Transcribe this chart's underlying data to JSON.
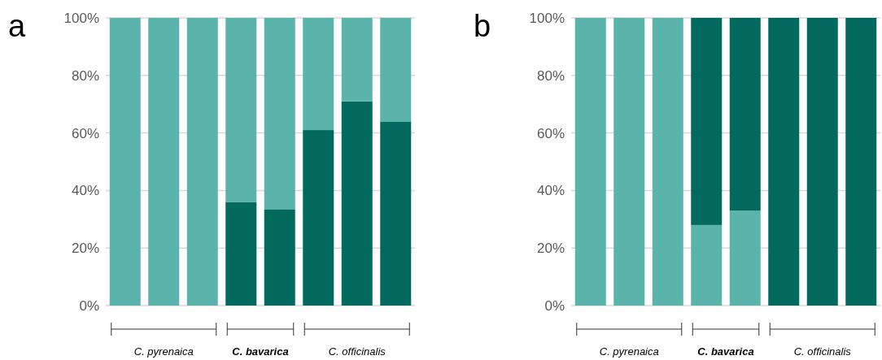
{
  "chart_data": [
    {
      "type": "bar",
      "title": "a",
      "stacked": true,
      "categories": [
        null,
        null,
        null,
        null,
        null,
        null,
        null,
        null
      ],
      "series": [
        {
          "color": "#02695e",
          "values": [
            0,
            0,
            0,
            36,
            33.5,
            61,
            71,
            64
          ]
        },
        {
          "color": "#5ab4ab",
          "values": [
            100,
            100,
            100,
            64,
            66.5,
            39,
            29,
            36
          ]
        }
      ],
      "ylim": [
        0,
        100
      ],
      "yticks": [
        {
          "value": 0,
          "label": "0%"
        },
        {
          "value": 20,
          "label": "20%"
        },
        {
          "value": 40,
          "label": "40%"
        },
        {
          "value": 60,
          "label": "60%"
        },
        {
          "value": 80,
          "label": "80%"
        },
        {
          "value": 100,
          "label": "100%"
        }
      ],
      "grid": "y",
      "annotations": [
        "C. pyrenaica",
        "C. bavarica",
        "C. officinalis"
      ]
    },
    {
      "type": "bar",
      "title": "b",
      "stacked": true,
      "categories": [
        null,
        null,
        null,
        null,
        null,
        null,
        null,
        null
      ],
      "series": [
        {
          "color": "#5ab4ab",
          "values": [
            100,
            100,
            100,
            28,
            33,
            0,
            0,
            0
          ]
        },
        {
          "color": "#02695e",
          "values": [
            0,
            0,
            0,
            72,
            67,
            100,
            100,
            100
          ]
        }
      ],
      "ylim": [
        0,
        100
      ],
      "yticks": [
        {
          "value": 0,
          "label": "0%"
        },
        {
          "value": 20,
          "label": "20%"
        },
        {
          "value": 40,
          "label": "40%"
        },
        {
          "value": 60,
          "label": "60%"
        },
        {
          "value": 80,
          "label": "80%"
        },
        {
          "value": 100,
          "label": "100%"
        }
      ],
      "grid": "y",
      "annotations": [
        "C. pyrenaica",
        "C. bavarica",
        "C. officinalis"
      ]
    }
  ]
}
